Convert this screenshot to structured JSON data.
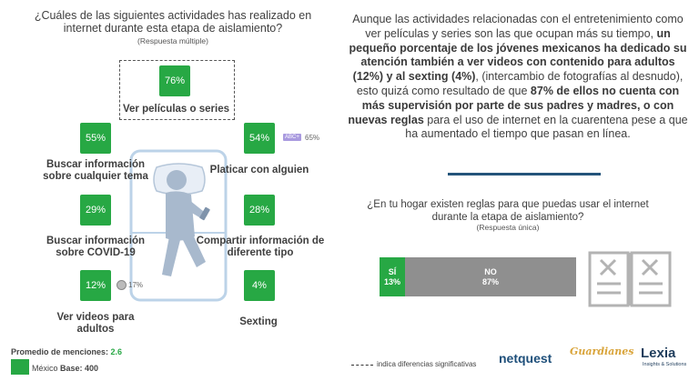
{
  "question": {
    "title": "¿Cuáles de las siguientes actividades has realizado en internet durante esta etapa de aislamiento?",
    "subtitle": "(Respuesta múltiple)"
  },
  "activities": [
    {
      "label": "Ver películas o series",
      "value_text": "76%"
    },
    {
      "label": "Buscar información sobre cualquier tema",
      "value_text": "55%"
    },
    {
      "label": "Platicar con alguien",
      "value_text": "54%"
    },
    {
      "label": "Buscar información sobre COVID-19",
      "value_text": "29%"
    },
    {
      "label": "Compartir información de diferente tipo",
      "value_text": "28%"
    },
    {
      "label": "Ver videos para adultos",
      "value_text": "12%"
    },
    {
      "label": "Sexting",
      "value_text": "4%"
    }
  ],
  "comparisons": {
    "abc_tag": "ABC+",
    "abc_value": "65%",
    "adult_video_significant": "17%"
  },
  "paragraph": {
    "p1": "Aunque las actividades relacionadas con el entretenimiento como ver películas y series son las que ocupan más su tiempo, ",
    "b1": "un pequeño porcentaje de los jóvenes mexicanos ha dedicado su atención también a ver videos con contenido para adultos (12%) y al sexting (4%)",
    "p2": ", (intercambio de fotografías al desnudo), esto quizá como resultado de que ",
    "b2": "87% de ellos no cuenta con más supervisión por parte de sus padres y madres, o con nuevas reglas",
    "p3": " para el uso de internet en la cuarentena pese a que ha aumentado el tiempo que pasan en línea."
  },
  "question2": {
    "title": "¿En tu hogar existen reglas para que puedas usar el internet durante la etapa de aislamiento?",
    "subtitle": "(Respuesta única)"
  },
  "chart_data": [
    {
      "type": "bar",
      "title": "¿Cuáles de las siguientes actividades has realizado en internet durante esta etapa de aislamiento?",
      "categories": [
        "Ver películas o series",
        "Buscar información sobre cualquier tema",
        "Platicar con alguien",
        "Buscar información sobre COVID-19",
        "Compartir información de diferente tipo",
        "Ver videos para adultos",
        "Sexting"
      ],
      "values": [
        76,
        55,
        54,
        29,
        28,
        12,
        4
      ],
      "unit": "%"
    },
    {
      "type": "bar",
      "orientation": "horizontal-stacked",
      "title": "¿En tu hogar existen reglas para que puedas usar el internet durante la etapa de aislamiento?",
      "categories": [
        "SÍ",
        "NO"
      ],
      "values": [
        13,
        87
      ],
      "value_texts": [
        "13%",
        "87%"
      ],
      "colors": [
        "#27a844",
        "#8f8f8f"
      ]
    }
  ],
  "footer": {
    "avg_label": "Promedio de menciones: ",
    "avg_value": "2.6",
    "legend_label": "México",
    "base": "Base: 400",
    "significance_note": "indica diferencias significativas"
  },
  "logos": {
    "netquest": "netquest",
    "guardianes": "Guardianes",
    "lexia": "Lexia",
    "lexia_sub": "Insights & Solutions"
  }
}
